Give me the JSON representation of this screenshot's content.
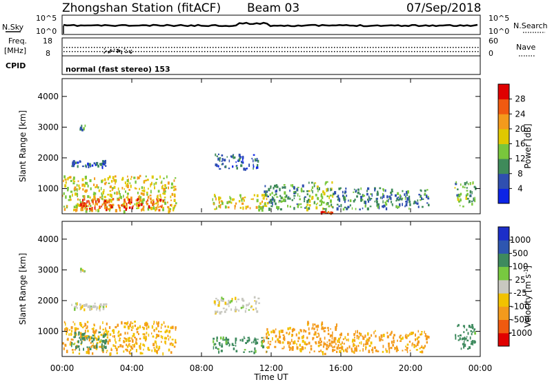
{
  "header": {
    "station": "Zhongshan Station (fitACF)",
    "beam": "Beam 03",
    "date": "07/Sep/2018"
  },
  "strip": {
    "nsky_label": "N.Sky",
    "nsky_tick_top": "10^5",
    "nsky_tick_bottom": "10^0",
    "nsearch_label": "N.Search",
    "nsearch_tick_top": "10^5",
    "nsearch_tick_bottom": "10^0",
    "freq_label_1": "Freq.",
    "freq_label_2": "[MHz]",
    "freq_tick_top": "18",
    "freq_tick_bottom": "8",
    "nave_label": "Nave",
    "nave_tick_top": "60",
    "nave_tick_bottom": "0",
    "cpid_label": "CPID",
    "cpid_text": "normal (fast stereo) 153"
  },
  "colors": {
    "power_scale": [
      "#0c24e6",
      "#2f4fb0",
      "#3f8a5a",
      "#79c63c",
      "#e0c800",
      "#f39a1c",
      "#f05a10",
      "#e00000"
    ],
    "velocity_scale": [
      "#e00000",
      "#f05a10",
      "#f39a1c",
      "#f2c200",
      "#c8c8c0",
      "#78c840",
      "#3e8a5e",
      "#2e56b0",
      "#1c2ec8"
    ]
  },
  "chart_data": [
    {
      "type": "heatmap",
      "title": "",
      "xlabel": "Time UT",
      "ylabel": "Slant Range [km]",
      "xticks": [
        "00:00",
        "04:00",
        "08:00",
        "12:00",
        "16:00",
        "20:00",
        "00:00"
      ],
      "yticks": [
        "1000",
        "2000",
        "3000",
        "4000"
      ],
      "xlim_hours": [
        0,
        24
      ],
      "ylim_km": [
        180,
        4580
      ],
      "colorbar_label": "Power [dB]",
      "colorbar_ticks": [
        "4",
        "8",
        "12",
        "16",
        "20",
        "24",
        "28"
      ],
      "zlim": [
        0,
        30
      ],
      "patches": [
        {
          "t": [
            0.0,
            6.5
          ],
          "r": [
            250,
            1400
          ],
          "dB": 18
        },
        {
          "t": [
            1.0,
            6.2
          ],
          "r": [
            280,
            650
          ],
          "dB": 26
        },
        {
          "t": [
            1.0,
            1.3
          ],
          "r": [
            2900,
            3050
          ],
          "dB": 8
        },
        {
          "t": [
            0.5,
            2.5
          ],
          "r": [
            1700,
            1900
          ],
          "dB": 7
        },
        {
          "t": [
            8.7,
            11.3
          ],
          "r": [
            1600,
            2100
          ],
          "dB": 7
        },
        {
          "t": [
            8.6,
            11.8
          ],
          "r": [
            300,
            800
          ],
          "dB": 18
        },
        {
          "t": [
            11.5,
            14.0
          ],
          "r": [
            300,
            1100
          ],
          "dB": 11
        },
        {
          "t": [
            14.0,
            15.5
          ],
          "r": [
            250,
            1200
          ],
          "dB": 14
        },
        {
          "t": [
            14.8,
            15.5
          ],
          "r": [
            180,
            230
          ],
          "dB": 28
        },
        {
          "t": [
            15.5,
            21.0
          ],
          "r": [
            300,
            1000
          ],
          "dB": 9
        },
        {
          "t": [
            22.5,
            23.7
          ],
          "r": [
            400,
            1200
          ],
          "dB": 12
        }
      ]
    },
    {
      "type": "heatmap",
      "title": "",
      "xlabel": "Time UT",
      "ylabel": "Slant Range [km]",
      "xticks": [
        "00:00",
        "04:00",
        "08:00",
        "12:00",
        "16:00",
        "20:00",
        "00:00"
      ],
      "yticks": [
        "1000",
        "2000",
        "3000",
        "4000"
      ],
      "xlim_hours": [
        0,
        24
      ],
      "ylim_km": [
        180,
        4580
      ],
      "colorbar_label": "Velocity [m s^-1]",
      "colorbar_ticks": [
        "-1000",
        "-500",
        "-100",
        "-25",
        "25",
        "100",
        "500",
        "1000"
      ],
      "patches": [
        {
          "t": [
            0.0,
            6.5
          ],
          "r": [
            250,
            1300
          ],
          "v": -100
        },
        {
          "t": [
            0.5,
            2.5
          ],
          "r": [
            400,
            1000
          ],
          "v": 250
        },
        {
          "t": [
            1.0,
            1.3
          ],
          "r": [
            2900,
            3050
          ],
          "v": 0
        },
        {
          "t": [
            0.5,
            2.5
          ],
          "r": [
            1700,
            1900
          ],
          "v": 0
        },
        {
          "t": [
            8.7,
            11.3
          ],
          "r": [
            1600,
            2100
          ],
          "v": 0
        },
        {
          "t": [
            8.6,
            11.8
          ],
          "r": [
            300,
            800
          ],
          "v": 150
        },
        {
          "t": [
            11.5,
            14.0
          ],
          "r": [
            300,
            1100
          ],
          "v": -150
        },
        {
          "t": [
            14.0,
            15.8
          ],
          "r": [
            250,
            1300
          ],
          "v": -250
        },
        {
          "t": [
            15.8,
            21.0
          ],
          "r": [
            300,
            1000
          ],
          "v": -150
        },
        {
          "t": [
            22.5,
            23.7
          ],
          "r": [
            400,
            1200
          ],
          "v": 300
        }
      ]
    }
  ]
}
